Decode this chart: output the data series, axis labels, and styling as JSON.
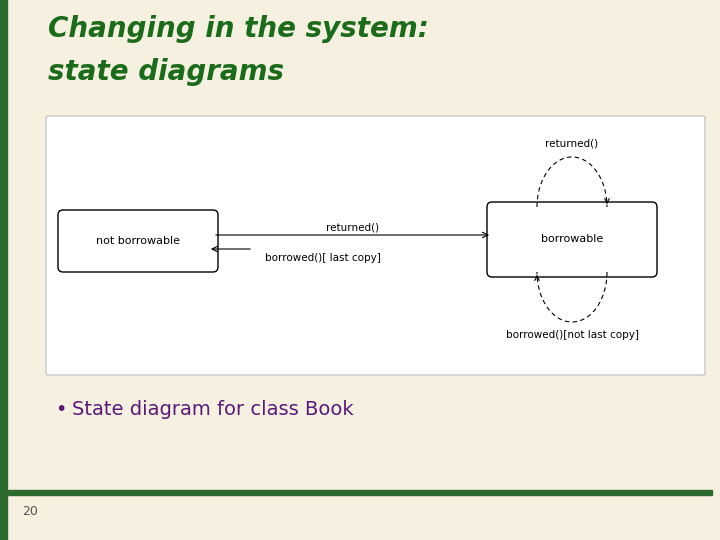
{
  "bg_color": "#f5f0e0",
  "title_line1": "Changing in the system:",
  "title_line2": "state diagrams",
  "title_color": "#1a6b1a",
  "title_fontsize": 20,
  "left_bar_color": "#2d6a2d",
  "diagram_bg": "#ffffff",
  "state1_label": "not borrowable",
  "state2_label": "borrowable",
  "arrow1_label": "returned()",
  "arrow2_label": "borrowed()[ last copy]",
  "self_loop_top_label": "returned()",
  "self_loop_bottom_label": "borrowed()[not last copy]",
  "bullet_text": "State diagram for class Book",
  "bullet_color": "#5b1a7a",
  "bullet_fontsize": 14,
  "page_number": "20",
  "page_color": "#555555",
  "bottom_bar_color": "#2d6a2d",
  "diagram_border_color": "#bbbbbb"
}
